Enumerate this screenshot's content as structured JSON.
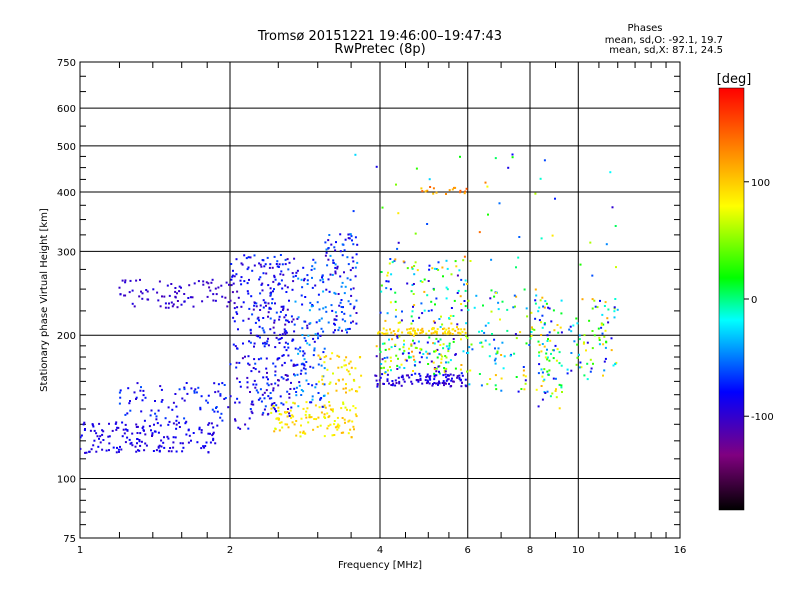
{
  "chart_data": {
    "type": "scatter",
    "title": "Tromsø 20151221 19:46:00–19:47:43",
    "subtitle": "RwPretec (8p)",
    "xlabel": "Frequency [MHz]",
    "ylabel": "Stationary phase Virtual Height [km]",
    "x_scale": "log",
    "y_scale": "log",
    "xlim": [
      1,
      16
    ],
    "ylim": [
      75,
      750
    ],
    "x_ticks": [
      1,
      2,
      4,
      6,
      8,
      10,
      16
    ],
    "y_ticks": [
      75,
      100,
      200,
      300,
      400,
      500,
      600,
      750
    ],
    "grid": true,
    "stats": {
      "header": "Phases",
      "line_o": "mean, sd,O: -92.1, 19.7",
      "line_x": "mean, sd,X:  87.1, 24.5"
    },
    "colorbar": {
      "label": "[deg]",
      "range": [
        -180,
        180
      ],
      "ticks": [
        100,
        0,
        -100
      ],
      "colors": [
        "#ff0000",
        "#ff8000",
        "#ffff00",
        "#00ff00",
        "#00ffff",
        "#0000ff",
        "#800080",
        "#000000"
      ]
    },
    "clusters": [
      {
        "x": [
          1.0,
          1.9
        ],
        "y": [
          113,
          132
        ],
        "phase": [
          -100,
          -80
        ],
        "count": 170
      },
      {
        "x": [
          1.2,
          2.0
        ],
        "y": [
          132,
          160
        ],
        "phase": [
          -100,
          -60
        ],
        "count": 80
      },
      {
        "x": [
          1.2,
          2.1
        ],
        "y": [
          228,
          262
        ],
        "phase": [
          -110,
          -90
        ],
        "count": 90
      },
      {
        "x": [
          2.0,
          2.2
        ],
        "y": [
          125,
          295
        ],
        "phase": [
          -110,
          -70
        ],
        "count": 70
      },
      {
        "x": [
          2.2,
          2.7
        ],
        "y": [
          135,
          295
        ],
        "phase": [
          -110,
          -60
        ],
        "count": 260
      },
      {
        "x": [
          2.7,
          3.1
        ],
        "y": [
          140,
          290
        ],
        "phase": [
          -100,
          -30
        ],
        "count": 130
      },
      {
        "x": [
          2.4,
          3.6
        ],
        "y": [
          122,
          145
        ],
        "phase": [
          70,
          110
        ],
        "count": 120
      },
      {
        "x": [
          3.0,
          3.7
        ],
        "y": [
          150,
          185
        ],
        "phase": [
          70,
          110
        ],
        "count": 50
      },
      {
        "x": [
          3.1,
          3.6
        ],
        "y": [
          200,
          330
        ],
        "phase": [
          -110,
          -40
        ],
        "count": 110
      },
      {
        "x": [
          3.9,
          6.0
        ],
        "y": [
          156,
          166
        ],
        "phase": [
          -110,
          -80
        ],
        "count": 110
      },
      {
        "x": [
          3.9,
          6.0
        ],
        "y": [
          166,
          200
        ],
        "phase": [
          -110,
          120
        ],
        "count": 140
      },
      {
        "x": [
          3.9,
          6.0
        ],
        "y": [
          201,
          207
        ],
        "phase": [
          80,
          110
        ],
        "count": 80
      },
      {
        "x": [
          4.0,
          6.0
        ],
        "y": [
          208,
          290
        ],
        "phase": [
          -110,
          120
        ],
        "count": 110
      },
      {
        "x": [
          4.8,
          6.0
        ],
        "y": [
          395,
          410
        ],
        "phase": [
          100,
          150
        ],
        "count": 18
      },
      {
        "x": [
          6.0,
          8.7
        ],
        "y": [
          150,
          250
        ],
        "phase": [
          -100,
          120
        ],
        "count": 110
      },
      {
        "x": [
          8.3,
          9.3
        ],
        "y": [
          140,
          240
        ],
        "phase": [
          -100,
          110
        ],
        "count": 70
      },
      {
        "x": [
          9.5,
          12.0
        ],
        "y": [
          160,
          240
        ],
        "phase": [
          -100,
          120
        ],
        "count": 80
      },
      {
        "x": [
          3.5,
          12.0
        ],
        "y": [
          260,
          480
        ],
        "phase": [
          -100,
          140
        ],
        "count": 45
      }
    ]
  }
}
